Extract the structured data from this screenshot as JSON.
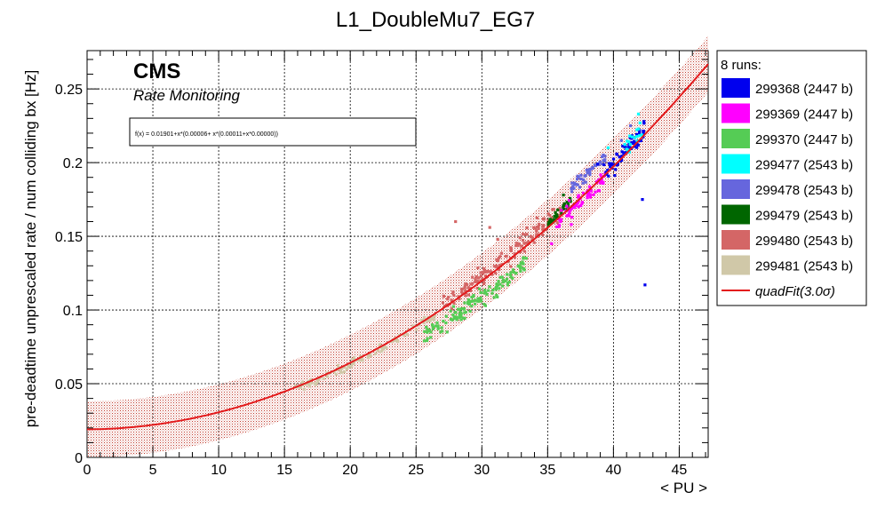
{
  "chart_data": {
    "type": "scatter",
    "title": "L1_DoubleMu7_EG7",
    "xlabel": "< PU >",
    "ylabel": "pre-deadtime unprescaled rate / num colliding bx [Hz]",
    "xlim": [
      0,
      47.2
    ],
    "ylim": [
      0,
      0.276
    ],
    "x_ticks": [
      0,
      5,
      10,
      15,
      20,
      25,
      30,
      35,
      40,
      45
    ],
    "y_ticks": [
      0,
      0.05,
      0.1,
      0.15,
      0.2,
      0.25
    ],
    "x_tick_labels": [
      "0",
      "5",
      "10",
      "15",
      "20",
      "25",
      "30",
      "35",
      "40",
      "45"
    ],
    "y_tick_labels": [
      "0",
      "0.05",
      "0.1",
      "0.15",
      "0.2",
      "0.25"
    ],
    "grid": true,
    "experiment_label": "CMS",
    "sub_label": "Rate Monitoring",
    "fit_formula": "f(x) = 0.01901+x*(0.00006+ x*(0.00011+x*0.00000))",
    "fit": {
      "name": "quadFit(3.0σ)",
      "a": 0.01901,
      "b": 6e-05,
      "c": 0.00011,
      "band_halfwidth": 0.019,
      "x_range": [
        0,
        47.2
      ],
      "color": "#e31a1c"
    },
    "legend": {
      "title": "8 runs:",
      "position": "right-outside"
    },
    "series": [
      {
        "name": "299368 (2447 b)",
        "color": "#0000ee",
        "x_range": [
          39.2,
          42.4
        ],
        "offset": 0.002,
        "spread": 0.0035,
        "n": 70,
        "outliers": [
          [
            42.4,
            0.117
          ],
          [
            42.2,
            0.175
          ],
          [
            41.6,
            0.211
          ],
          [
            38.8,
            0.199
          ]
        ]
      },
      {
        "name": "299369 (2447 b)",
        "color": "#ff00ff",
        "x_range": [
          35.6,
          39.4
        ],
        "offset": -0.002,
        "spread": 0.003,
        "n": 70,
        "outliers": [
          [
            37.5,
            0.176
          ],
          [
            35.3,
            0.145
          ],
          [
            36.8,
            0.158
          ]
        ]
      },
      {
        "name": "299370 (2447 b)",
        "color": "#55cc55",
        "x_range": [
          25.6,
          33.4
        ],
        "offset": -0.011,
        "spread": 0.003,
        "n": 140,
        "outliers": []
      },
      {
        "name": "299477 (2543 b)",
        "color": "#00ffff",
        "x_range": [
          40.8,
          42.2
        ],
        "offset": 0.004,
        "spread": 0.004,
        "n": 18,
        "outliers": [
          [
            41.9,
            0.233
          ],
          [
            39.6,
            0.21
          ]
        ]
      },
      {
        "name": "299478 (2543 b)",
        "color": "#6666dd",
        "x_range": [
          36.8,
          39.4
        ],
        "offset": 0.012,
        "spread": 0.002,
        "n": 45,
        "outliers": [
          [
            40.6,
            0.215
          ],
          [
            41.3,
            0.225
          ]
        ]
      },
      {
        "name": "299479 (2543 b)",
        "color": "#006600",
        "x_range": [
          35.0,
          36.8
        ],
        "offset": 0.003,
        "spread": 0.002,
        "n": 40,
        "outliers": [
          [
            36.2,
            0.178
          ]
        ]
      },
      {
        "name": "299480 (2543 b)",
        "color": "#d46666",
        "x_range": [
          27.0,
          36.0
        ],
        "offset": 0.003,
        "spread": 0.0035,
        "n": 160,
        "outliers": [
          [
            28.0,
            0.16
          ],
          [
            31.2,
            0.148
          ],
          [
            30.6,
            0.156
          ]
        ]
      },
      {
        "name": "299481 (2543 b)",
        "color": "#d0c8a8",
        "x_range": [
          15.8,
          26.6
        ],
        "offset": -0.001,
        "spread": 0.0015,
        "n": 110,
        "outliers": []
      }
    ]
  }
}
